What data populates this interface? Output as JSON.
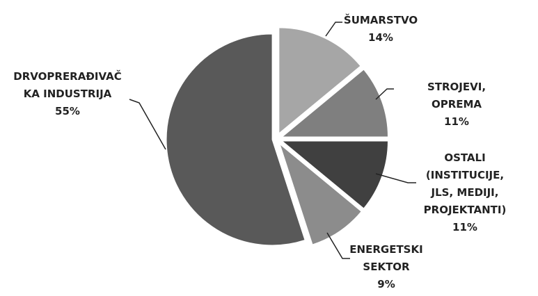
{
  "chart_data": {
    "type": "pie",
    "categories": [
      "ŠUMARSTVO",
      "STROJEVI, OPREMA",
      "OSTALI\n(INSTITUCIJE,\nJLS, MEDIJI,\nPROJEKTANTI)",
      "ENERGETSKI\nSEKTOR",
      "DRVOPRERAĐIVAČ\nKA INDUSTRIJA"
    ],
    "values": [
      14,
      11,
      11,
      9,
      55
    ],
    "value_labels": [
      "14%",
      "11%",
      "11%",
      "9%",
      "55%"
    ],
    "colors": [
      "#a6a6a6",
      "#7f7f7f",
      "#404040",
      "#8c8c8c",
      "#595959"
    ]
  }
}
